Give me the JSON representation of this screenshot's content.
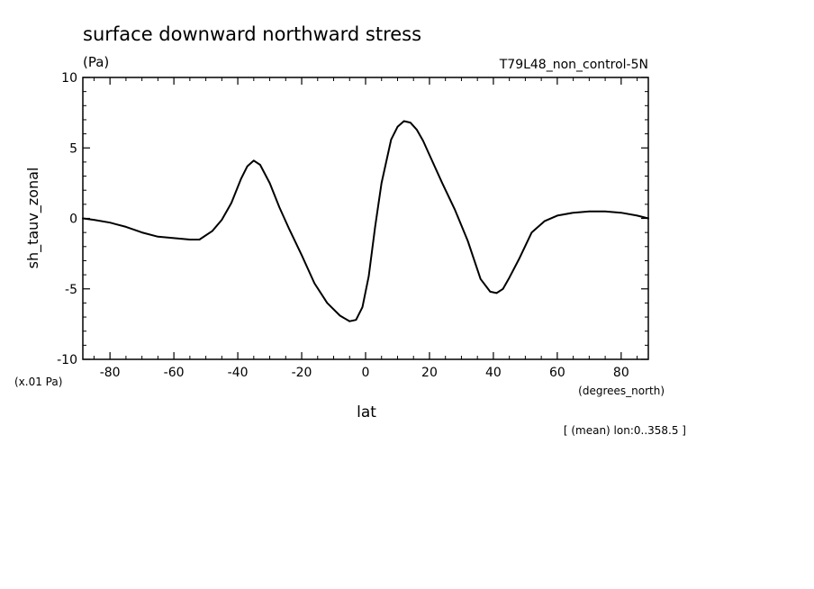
{
  "chart_data": {
    "type": "line",
    "title": "surface downward northward stress",
    "units_label": "(Pa)",
    "run_label": "T79L48_non_control-5N",
    "ylabel": "sh_tauv_zonal",
    "y_scale_label": "(x.01 Pa)",
    "xlabel": "lat",
    "x_units_label": "(degrees_north)",
    "footnote": "[ (mean) lon:0..358.5 ]",
    "xlim": [
      -88.5,
      88.5
    ],
    "ylim": [
      -10,
      10
    ],
    "x_ticks": [
      -80,
      -60,
      -40,
      -20,
      0,
      20,
      40,
      60,
      80
    ],
    "y_ticks": [
      -10,
      -5,
      0,
      5,
      10
    ],
    "x_tick_labels": [
      "-80",
      "-60",
      "-40",
      "-20",
      "0",
      "20",
      "40",
      "60",
      "80"
    ],
    "y_tick_labels": [
      "-10",
      "-5",
      "0",
      "5",
      "10"
    ],
    "line_color": "#000000",
    "series": [
      {
        "x": [
          -88.5,
          -85,
          -80,
          -75,
          -70,
          -65,
          -60,
          -55,
          -52,
          -48,
          -45,
          -42,
          -39,
          -37,
          -35,
          -33,
          -30,
          -27,
          -24,
          -20,
          -16,
          -12,
          -8,
          -5,
          -3,
          -1,
          1,
          3,
          5,
          8,
          10,
          12,
          14,
          16,
          18,
          20,
          24,
          28,
          32,
          36,
          39,
          41,
          43,
          45,
          48,
          52,
          56,
          60,
          65,
          70,
          75,
          80,
          85,
          88.5
        ],
        "y": [
          0.0,
          -0.1,
          -0.3,
          -0.6,
          -1.0,
          -1.3,
          -1.4,
          -1.5,
          -1.5,
          -0.9,
          -0.1,
          1.1,
          2.8,
          3.7,
          4.1,
          3.8,
          2.5,
          0.8,
          -0.7,
          -2.6,
          -4.6,
          -6.0,
          -6.9,
          -7.3,
          -7.2,
          -6.3,
          -4.1,
          -0.6,
          2.5,
          5.6,
          6.5,
          6.9,
          6.8,
          6.3,
          5.5,
          4.5,
          2.5,
          0.6,
          -1.6,
          -4.3,
          -5.2,
          -5.3,
          -5.0,
          -4.2,
          -2.9,
          -1.0,
          -0.2,
          0.2,
          0.4,
          0.5,
          0.5,
          0.4,
          0.2,
          0.0
        ]
      }
    ],
    "grid": false,
    "legend": "none"
  }
}
